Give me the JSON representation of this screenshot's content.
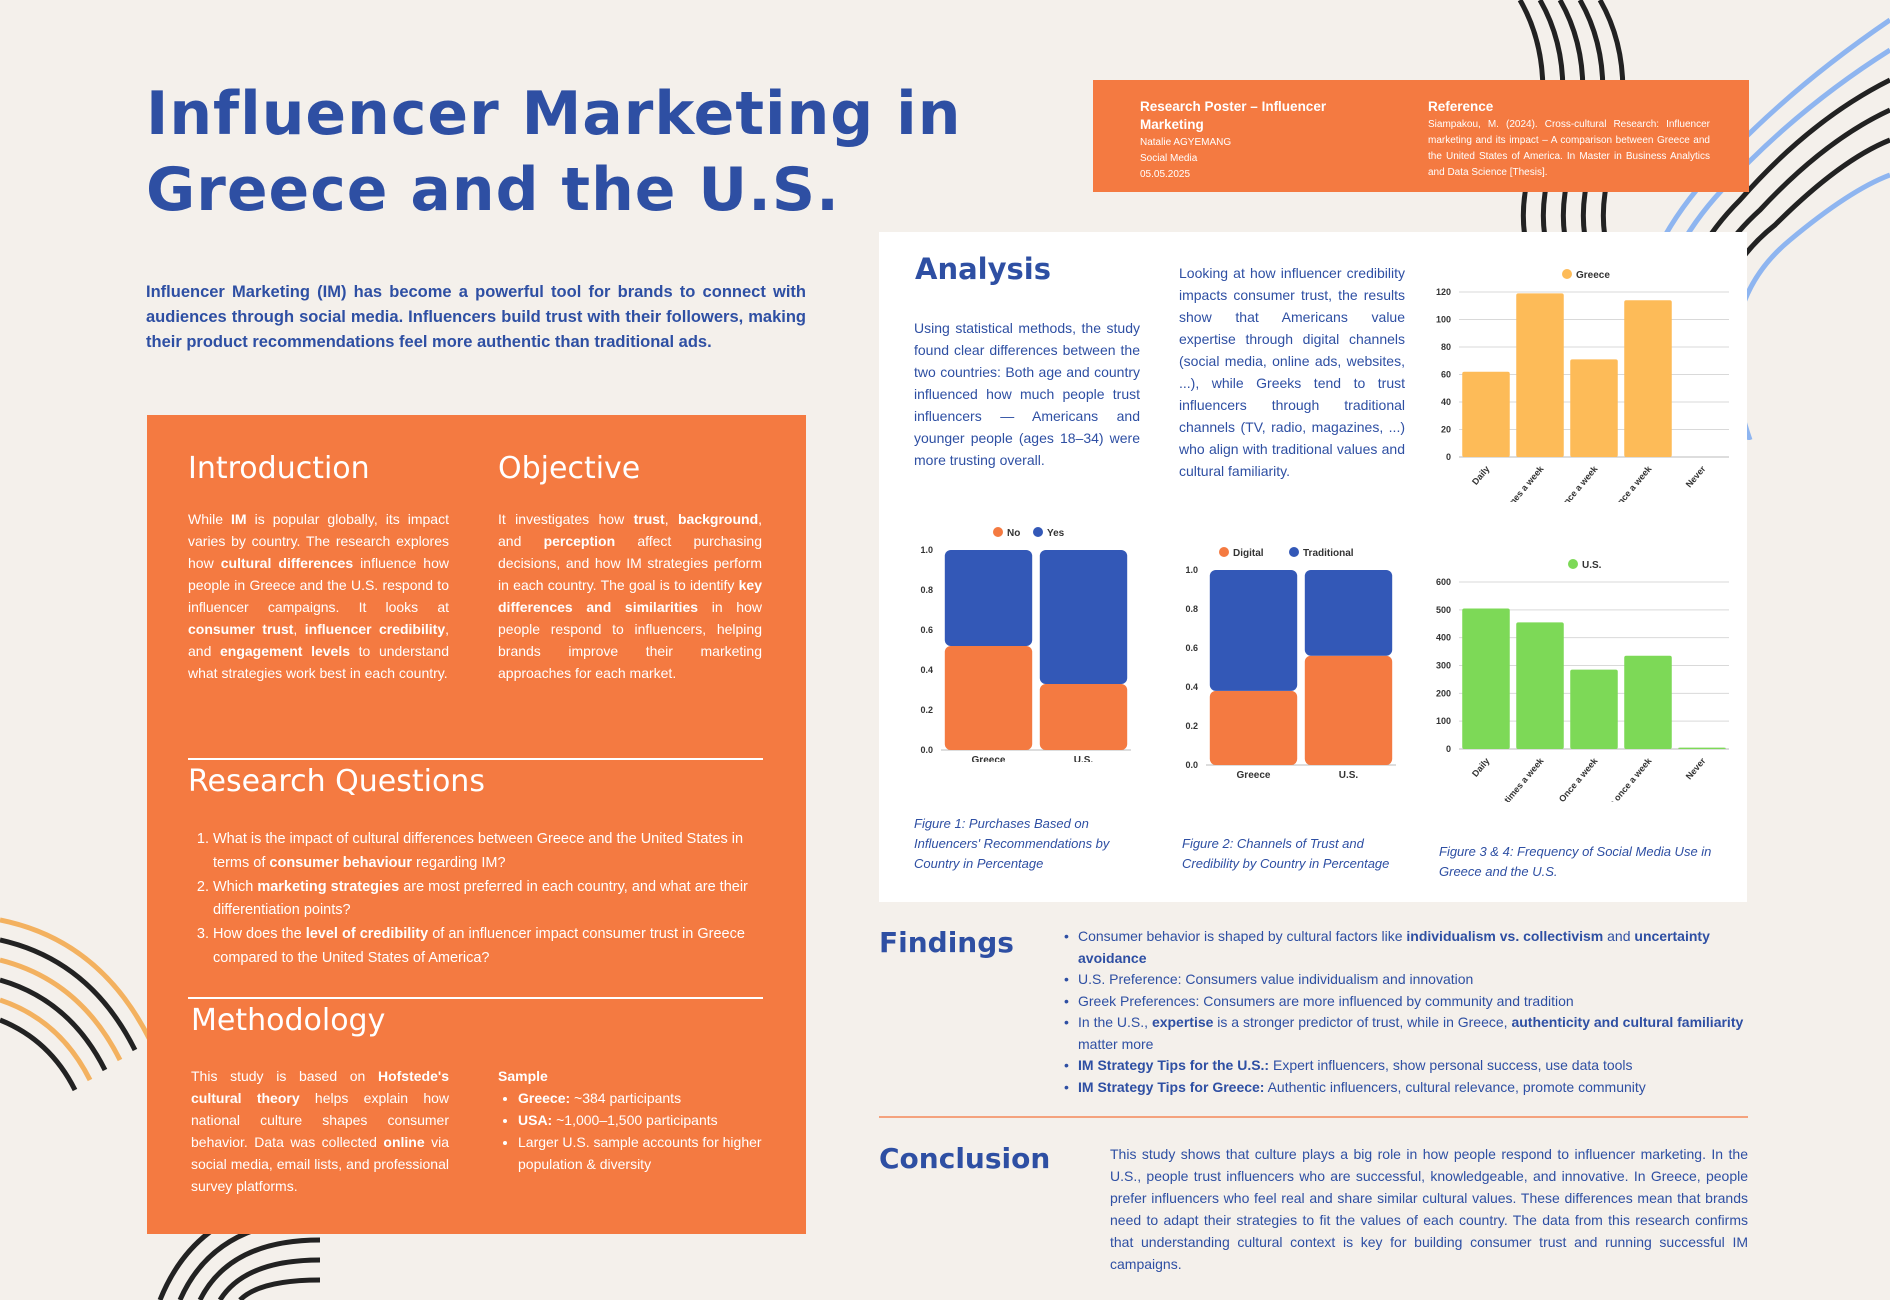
{
  "title": "Influencer Marketing in Greece and the U.S.",
  "lead": "Influencer Marketing (IM) has become a powerful tool for brands to connect with audiences through social media. Influencers build trust with their followers, making their product recommendations feel more authentic than traditional ads.",
  "ref": {
    "poster_title": "Research Poster – Influencer Marketing",
    "author": "Natalie AGYEMANG",
    "course": "Social Media",
    "date": "05.05.2025",
    "ref_heading": "Reference",
    "ref_text": "Siampakou, M. (2024). Cross-cultural Research: Influencer marketing and its impact – A comparison between Greece and the United States of America. In Master in Business Analytics and Data Science [Thesis]."
  },
  "intro": {
    "heading": "Introduction",
    "p1": "While ",
    "b1": "IM",
    "p2": " is popular globally, its impact varies by country. The research explores how ",
    "b2": "cultural differences",
    "p3": " influence how people in Greece and the U.S. respond to influencer campaigns. It looks at ",
    "b3": "consumer trust",
    "p4": ", ",
    "b4": "influencer credibility",
    "p5": ", and ",
    "b5": "engagement levels",
    "p6": " to understand what strategies work best in each country."
  },
  "objective": {
    "heading": "Objective",
    "p1": "It investigates how ",
    "b1": "trust",
    "p2": ", ",
    "b2": "background",
    "p3": ", and ",
    "b3": "perception",
    "p4": " affect purchasing decisions, and how IM strategies perform in each country. The goal is to identify ",
    "b4": "key differences and similarities",
    "p5": " in how people respond to influencers, helping brands improve their marketing approaches for each market."
  },
  "rq": {
    "heading": "Research Questions",
    "q1a": "What is the impact of cultural differences between Greece and the United States in terms of ",
    "q1b": "consumer behaviour",
    "q1c": " regarding IM?",
    "q2a": "Which ",
    "q2b": "marketing strategies",
    "q2c": " are most preferred in each country, and what are their differentiation points?",
    "q3a": "How does the ",
    "q3b": "level of credibility",
    "q3c": " of an influencer impact consumer trust in Greece compared to the United States of America?"
  },
  "method": {
    "heading": "Methodology",
    "p1": "This study is based on ",
    "b1": "Hofstede's cultural theory",
    "p2": " helps explain how national culture shapes consumer behavior. Data was collected ",
    "b2": "online",
    "p3": " via social media, email lists, and professional survey platforms.",
    "sample_heading": "Sample",
    "s1b": "Greece:",
    "s1": " ~384 participants",
    "s2b": "USA:",
    "s2": " ~1,000–1,500 participants",
    "s3": "Larger U.S. sample accounts for higher population & diversity"
  },
  "analysis": {
    "heading": "Analysis",
    "p1": "Using statistical methods, the study found clear differences between the two countries: Both age and country influenced how much people trust influencers — Americans and younger people (ages 18–34) were more trusting overall.",
    "p2": "Looking at how influencer credibility impacts consumer trust, the results show that Americans value expertise through digital channels (social media, online ads, websites, ...), while Greeks tend to trust influencers through traditional channels (TV, radio, magazines, ...) who align with traditional values and cultural familiarity.",
    "cap1": "Figure 1: Purchases Based on Influencers' Recommendations by Country in Percentage",
    "cap2": "Figure 2: Channels of Trust and Credibility by Country in Percentage",
    "cap3": "Figure 3 & 4: Frequency of Social Media Use in Greece and the U.S."
  },
  "chart_data": [
    {
      "type": "bar",
      "stacked": true,
      "categories": [
        "Greece",
        "U.S."
      ],
      "series": [
        {
          "name": "No",
          "values": [
            0.52,
            0.33
          ]
        },
        {
          "name": "Yes",
          "values": [
            0.48,
            0.67
          ]
        }
      ],
      "ylim": [
        0,
        1.0
      ],
      "yticks": [
        "0.0",
        "0.2",
        "0.4",
        "0.6",
        "0.8",
        "1.0"
      ],
      "legend": "top",
      "colors": [
        "#f47a41",
        "#3358b7"
      ]
    },
    {
      "type": "bar",
      "stacked": true,
      "categories": [
        "Greece",
        "U.S."
      ],
      "series": [
        {
          "name": "Digital",
          "values": [
            0.38,
            0.56
          ]
        },
        {
          "name": "Traditional",
          "values": [
            0.62,
            0.44
          ]
        }
      ],
      "ylim": [
        0,
        1.0
      ],
      "yticks": [
        "0.0",
        "0.2",
        "0.4",
        "0.6",
        "0.8",
        "1.0"
      ],
      "legend": "top",
      "colors": [
        "#f47a41",
        "#3358b7"
      ]
    },
    {
      "type": "bar",
      "categories": [
        "Daily",
        "Several times a week",
        "Once a week",
        "Less than once a week",
        "Never"
      ],
      "series": [
        {
          "name": "Greece",
          "values": [
            62,
            119,
            71,
            114,
            0
          ]
        }
      ],
      "ylim": [
        0,
        120
      ],
      "yticks": [
        "0",
        "20",
        "40",
        "60",
        "80",
        "100",
        "120"
      ],
      "grid": true,
      "legend": "top",
      "colors": [
        "#fdbb58"
      ]
    },
    {
      "type": "bar",
      "categories": [
        "Daily",
        "Several times a week",
        "Once a week",
        "Less than once a week",
        "Never"
      ],
      "series": [
        {
          "name": "U.S.",
          "values": [
            505,
            455,
            285,
            335,
            5
          ]
        }
      ],
      "ylim": [
        0,
        600
      ],
      "yticks": [
        "0",
        "100",
        "200",
        "300",
        "400",
        "500",
        "600"
      ],
      "grid": true,
      "legend": "top",
      "colors": [
        "#7dd957"
      ]
    }
  ],
  "findings": {
    "heading": "Findings",
    "f1a": "Consumer behavior is shaped by cultural factors like ",
    "f1b": "individualism vs. collectivism",
    "f1c": " and ",
    "f1d": "uncertainty avoidance",
    "f2": "U.S. Preference: Consumers value individualism and innovation",
    "f3": "Greek Preferences: Consumers are more influenced by community and tradition",
    "f4a": "In the U.S., ",
    "f4b": "expertise",
    "f4c": " is a stronger predictor of trust, while in Greece, ",
    "f4d": "authenticity and cultural familiarity",
    "f4e": " matter more",
    "f5b": "IM Strategy Tips for the U.S.:",
    "f5": " Expert influencers, show personal success, use data tools",
    "f6b": "IM Strategy Tips for Greece:",
    "f6": " Authentic influencers, cultural relevance, promote community"
  },
  "conclusion": {
    "heading": "Conclusion",
    "text": "This study shows that culture plays a big role in how people respond to influencer marketing. In the U.S., people trust influencers who are successful, knowledgeable, and innovative. In Greece, people prefer influencers who feel real and share similar cultural values. These differences mean that brands need to adapt their strategies to fit the values of each country. The data from this research confirms that understanding cultural context is key for building consumer trust and running successful IM campaigns."
  }
}
